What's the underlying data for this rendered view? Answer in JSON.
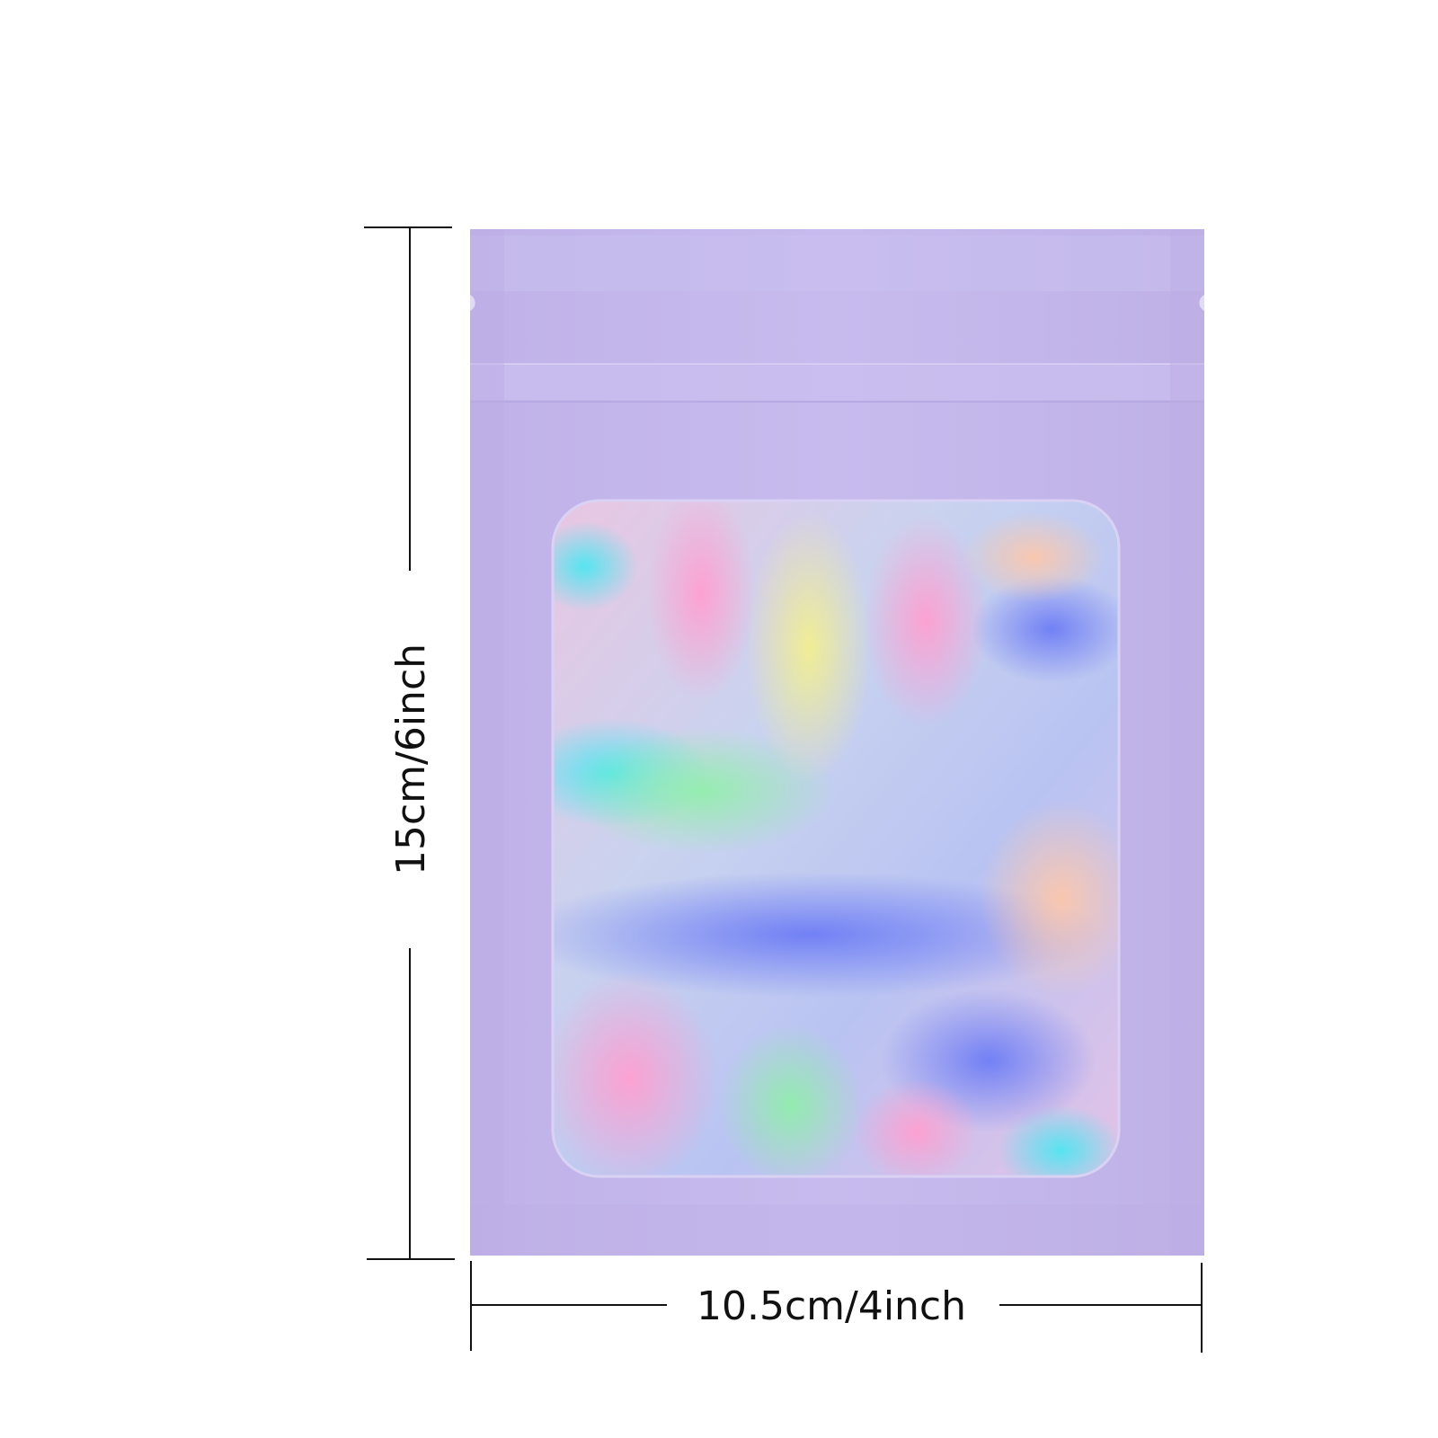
{
  "dimensions": {
    "height_label": "15cm/6inch",
    "width_label": "10.5cm/4inch"
  },
  "colors": {
    "bag_lavender": "#c3b6ea",
    "bag_seal_band": "#c8bdec",
    "line_color": "#111111"
  }
}
